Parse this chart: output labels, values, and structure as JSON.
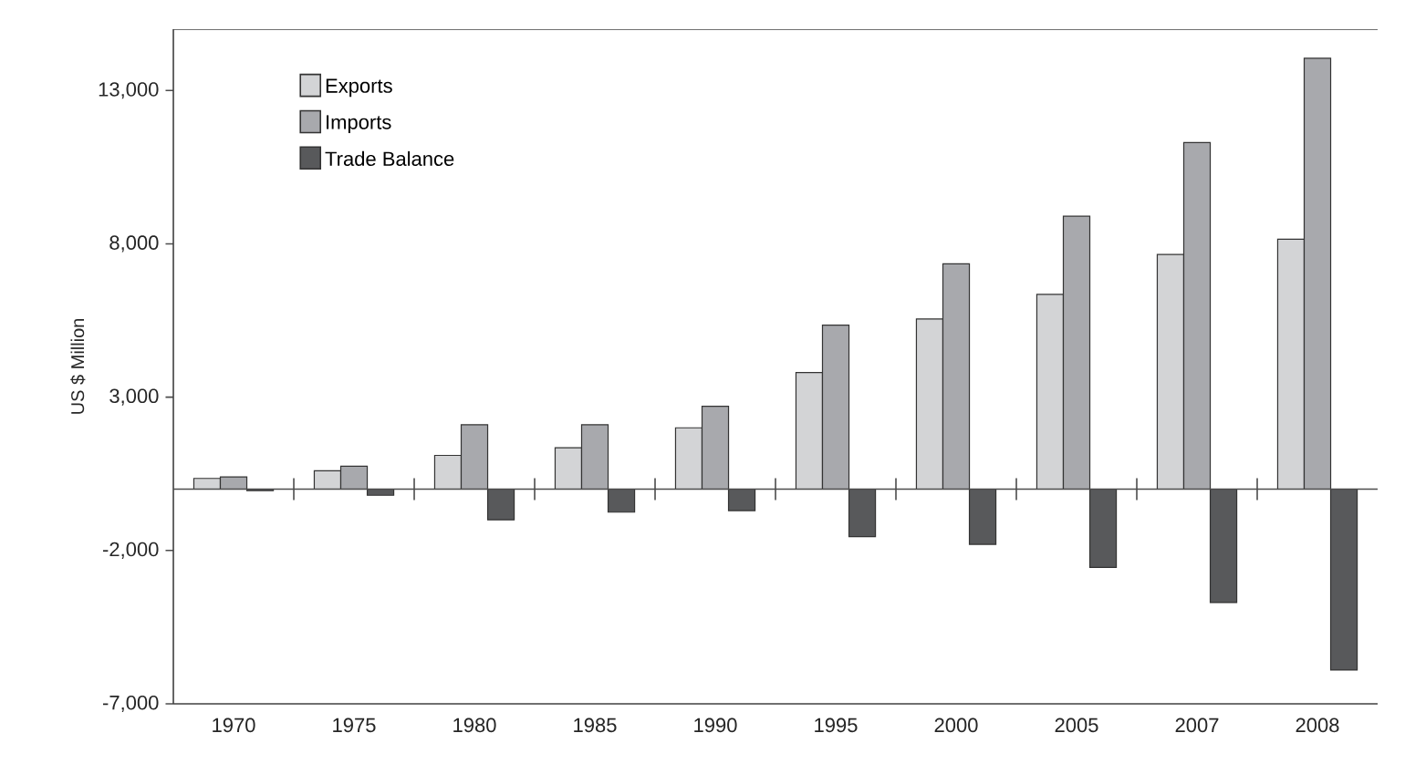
{
  "chart_data": {
    "type": "bar",
    "ylabel": "US $ Million",
    "categories": [
      "1970",
      "1975",
      "1980",
      "1985",
      "1990",
      "1995",
      "2000",
      "2005",
      "2007",
      "2008"
    ],
    "series": [
      {
        "name": "Exports",
        "color": "#d3d4d6",
        "values": [
          350,
          600,
          1100,
          1350,
          2000,
          3800,
          5550,
          6350,
          7650,
          8150
        ]
      },
      {
        "name": "Imports",
        "color": "#a8a9ad",
        "values": [
          400,
          750,
          2100,
          2100,
          2700,
          5350,
          7350,
          8900,
          11300,
          14050
        ]
      },
      {
        "name": "Trade Balance",
        "color": "#58595b",
        "values": [
          -50,
          -200,
          -1000,
          -750,
          -700,
          -1550,
          -1800,
          -2550,
          -3700,
          -5900
        ]
      }
    ],
    "ylim": [
      -7000,
      15000
    ],
    "yticks": [
      {
        "value": -7000,
        "label": "-7,000"
      },
      {
        "value": -2000,
        "label": "-2,000"
      },
      {
        "value": 3000,
        "label": "3,000"
      },
      {
        "value": 8000,
        "label": "8,000"
      },
      {
        "value": 13000,
        "label": "13,000"
      }
    ],
    "legend": "top left",
    "grid": false
  }
}
